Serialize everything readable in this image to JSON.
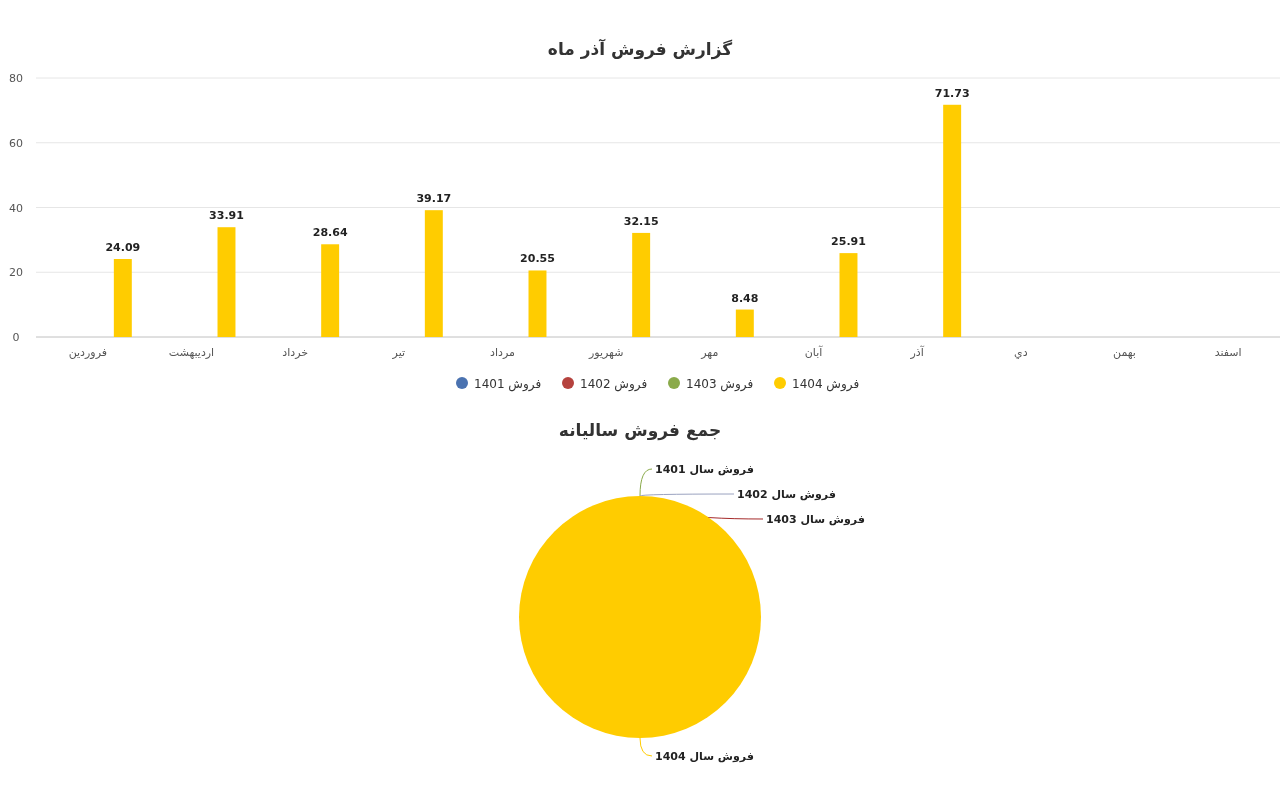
{
  "chart_data": [
    {
      "type": "bar",
      "title": "گزارش فروش آذر ماه",
      "categories": [
        "فروردین",
        "اردیبهشت",
        "خرداد",
        "تیر",
        "مرداد",
        "شهریور",
        "مهر",
        "آبان",
        "آذر",
        "دي",
        "بهمن",
        "اسفند"
      ],
      "series": [
        {
          "name": "فروش 1401",
          "color": "#4a72b0",
          "values": [
            null,
            null,
            null,
            null,
            null,
            null,
            null,
            null,
            null,
            null,
            null,
            null
          ]
        },
        {
          "name": "فروش 1402",
          "color": "#b5423e",
          "values": [
            null,
            null,
            null,
            null,
            null,
            null,
            null,
            null,
            null,
            null,
            null,
            null
          ]
        },
        {
          "name": "فروش 1403",
          "color": "#8aaa4a",
          "values": [
            null,
            null,
            null,
            null,
            null,
            null,
            null,
            null,
            null,
            null,
            null,
            null
          ]
        },
        {
          "name": "فروش 1404",
          "color": "#ffcc00",
          "values": [
            24.09,
            33.91,
            28.64,
            39.17,
            20.55,
            32.15,
            8.48,
            25.91,
            71.73,
            null,
            null,
            null
          ]
        }
      ],
      "ylim": [
        0,
        80
      ],
      "yticks": [
        0,
        20,
        40,
        60,
        80
      ],
      "grid": "y",
      "legend": "bottom",
      "marker": "circle",
      "data_labels": true
    },
    {
      "type": "pie",
      "title": "جمع فروش سالیانه",
      "categories": [
        "فروش سال 1401",
        "فروش سال 1402",
        "فروش سال 1403",
        "فروش سال 1404"
      ],
      "values": [
        0,
        0,
        0,
        100
      ],
      "colors": [
        "#8aaa4a",
        "#9ba3c0",
        "#a52a2a",
        "#ffcc00"
      ]
    }
  ]
}
